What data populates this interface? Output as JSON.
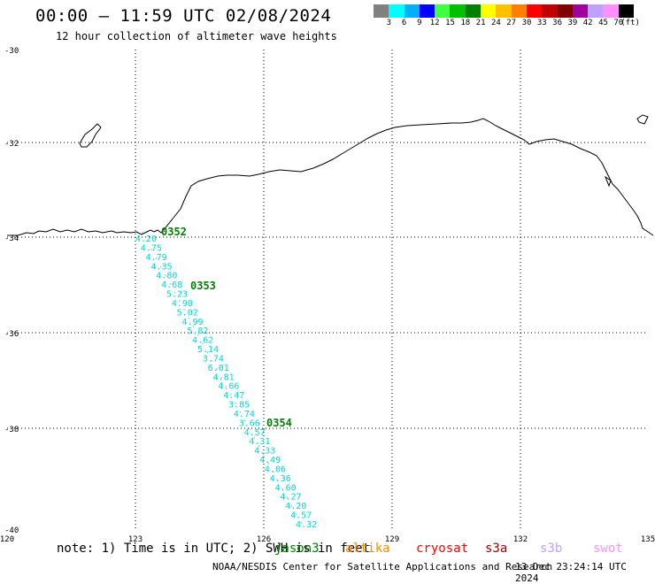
{
  "header": {
    "title": "00:00 – 11:59 UTC 02/08/2024",
    "subtitle": "12 hour collection of altimeter wave heights"
  },
  "colorbar": {
    "colors": [
      "#808080",
      "#00ffff",
      "#00b0ff",
      "#0000ff",
      "#40ff40",
      "#00c000",
      "#008000",
      "#ffff00",
      "#ffc000",
      "#ff8000",
      "#ff0000",
      "#c00000",
      "#800000",
      "#a000a0",
      "#c0a0ff",
      "#ff90ff",
      "#000000"
    ],
    "labels": [
      "3",
      "6",
      "9",
      "12",
      "15",
      "18",
      "21",
      "24",
      "27",
      "30",
      "33",
      "36",
      "39",
      "42",
      "45",
      "70",
      "(ft)"
    ]
  },
  "axes": {
    "lat_labels": [
      "-30",
      "-32",
      "-34",
      "-36",
      "-38",
      "-40"
    ],
    "lon_labels": [
      "120",
      "123",
      "126",
      "129",
      "132",
      "135"
    ]
  },
  "passes": [
    {
      "label": "0352",
      "color": "#008000"
    },
    {
      "label": "0353",
      "color": "#008000"
    },
    {
      "label": "0354",
      "color": "#008000"
    }
  ],
  "track": {
    "color": "#00d8d8",
    "heights": [
      "4.20",
      "4.75",
      "4.79",
      "4.35",
      "4.80",
      "4.68",
      "5.23",
      "4.90",
      "5.02",
      "4.99",
      "5.82",
      "4.62",
      "5.14",
      "3.74",
      "6.01",
      "4.81",
      "4.66",
      "4.47",
      "3.85",
      "4.74",
      "3.66",
      "4.57",
      "4.31",
      "4.33",
      "4.49",
      "4.06",
      "4.36",
      "4.60",
      "4.27",
      "4.20",
      "4.57",
      "4.32"
    ]
  },
  "note": "note: 1) Time is in UTC; 2) SWH is in feet",
  "satellites": [
    {
      "name": "jason3",
      "color": "#008000"
    },
    {
      "name": "altika",
      "color": "#ff8c00"
    },
    {
      "name": "cryosat",
      "color": "#ff0000"
    },
    {
      "name": "s3a",
      "color": "#a00000"
    },
    {
      "name": "s3b",
      "color": "#c0a0ff"
    },
    {
      "name": "swot",
      "color": "#ff90ff"
    }
  ],
  "footer": {
    "agency": "NOAA/NESDIS Center for Satellite Applications and Research",
    "timestamp": "13 Dec 23:24:14 UTC 2024"
  }
}
